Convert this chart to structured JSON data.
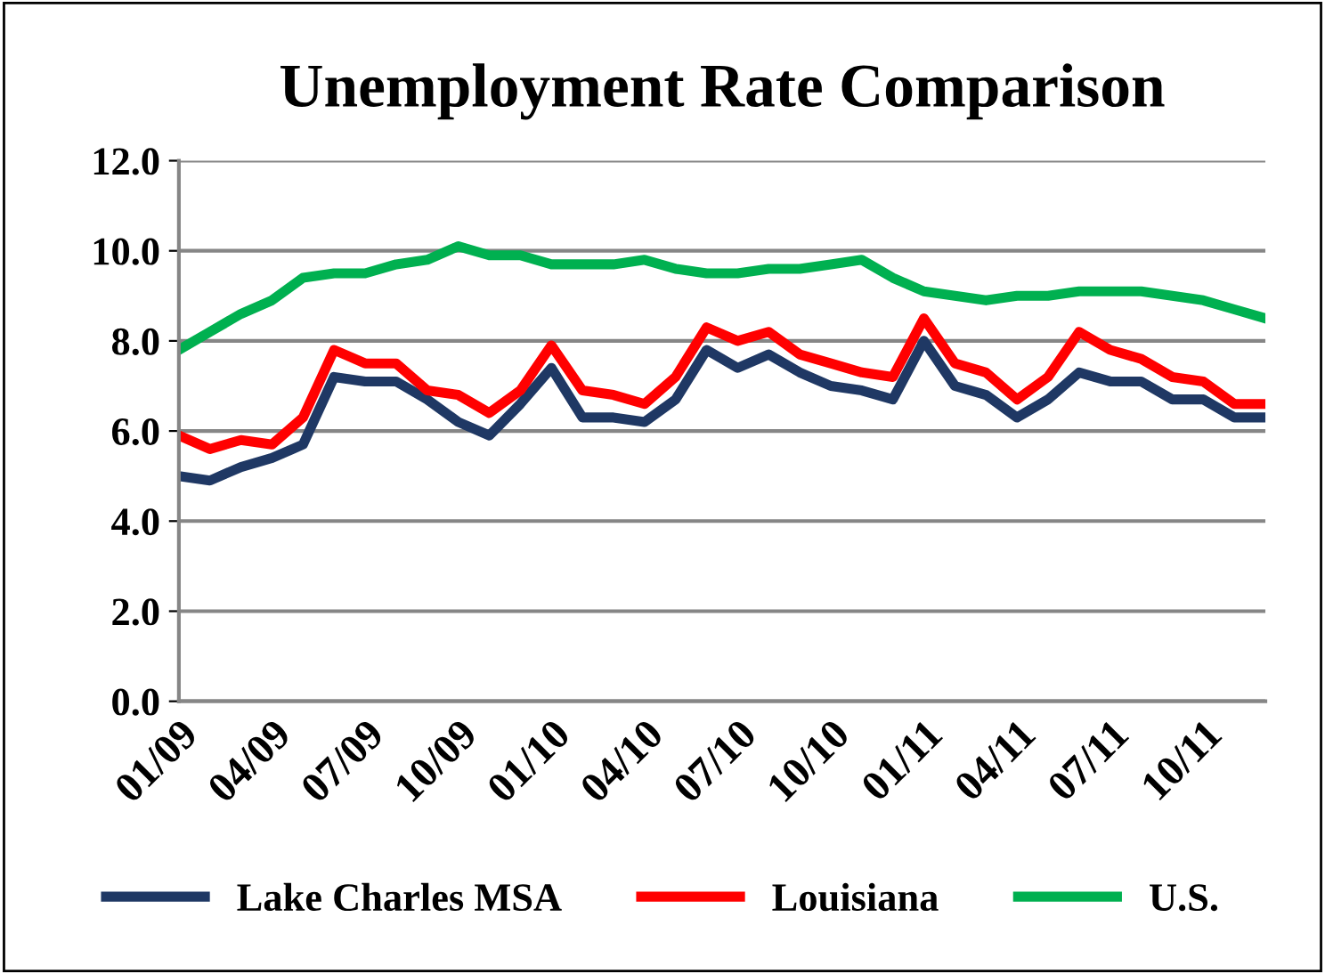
{
  "chart_data": {
    "type": "line",
    "title": "Unemployment Rate Comparison",
    "categories": [
      "01/09",
      null,
      null,
      "04/09",
      null,
      null,
      "07/09",
      null,
      null,
      "10/09",
      null,
      null,
      "01/10",
      null,
      null,
      "04/10",
      null,
      null,
      "07/10",
      null,
      null,
      "10/10",
      null,
      null,
      "01/11",
      null,
      null,
      "04/11",
      null,
      null,
      "07/11",
      null,
      null,
      "10/11",
      null,
      null
    ],
    "series": [
      {
        "name": "Lake Charles MSA",
        "color": "#1f3864",
        "values": [
          5.0,
          4.9,
          5.2,
          5.4,
          5.7,
          7.2,
          7.1,
          7.1,
          6.7,
          6.2,
          5.9,
          6.6,
          7.4,
          6.3,
          6.3,
          6.2,
          6.7,
          7.8,
          7.4,
          7.7,
          7.3,
          7.0,
          6.9,
          6.7,
          8.0,
          7.0,
          6.8,
          6.3,
          6.7,
          7.3,
          7.1,
          7.1,
          6.7,
          6.7,
          6.3,
          6.3
        ]
      },
      {
        "name": "Louisiana",
        "color": "#ff0000",
        "values": [
          5.9,
          5.6,
          5.8,
          5.7,
          6.3,
          7.8,
          7.5,
          7.5,
          6.9,
          6.8,
          6.4,
          6.9,
          7.9,
          6.9,
          6.8,
          6.6,
          7.2,
          8.3,
          8.0,
          8.2,
          7.7,
          7.5,
          7.3,
          7.2,
          8.5,
          7.5,
          7.3,
          6.7,
          7.2,
          8.2,
          7.8,
          7.6,
          7.2,
          7.1,
          6.6,
          6.6
        ]
      },
      {
        "name": "U.S.",
        "color": "#00b050",
        "values": [
          7.8,
          8.2,
          8.6,
          8.9,
          9.4,
          9.5,
          9.5,
          9.7,
          9.8,
          10.1,
          9.9,
          9.9,
          9.7,
          9.7,
          9.7,
          9.8,
          9.6,
          9.5,
          9.5,
          9.6,
          9.6,
          9.7,
          9.8,
          9.4,
          9.1,
          9.0,
          8.9,
          9.0,
          9.0,
          9.1,
          9.1,
          9.1,
          9.0,
          8.9,
          8.7,
          8.5
        ]
      }
    ],
    "ylim": [
      0,
      12
    ],
    "yticks": [
      {
        "value": 0,
        "label": "0.0"
      },
      {
        "value": 2,
        "label": "2.0"
      },
      {
        "value": 4,
        "label": "4.0"
      },
      {
        "value": 6,
        "label": "6.0"
      },
      {
        "value": 8,
        "label": "8.0"
      },
      {
        "value": 10,
        "label": "10.0"
      },
      {
        "value": 12,
        "label": "12.0"
      }
    ],
    "grid": "y",
    "legend": "bottom",
    "marker": "none",
    "line_style": "solid"
  }
}
